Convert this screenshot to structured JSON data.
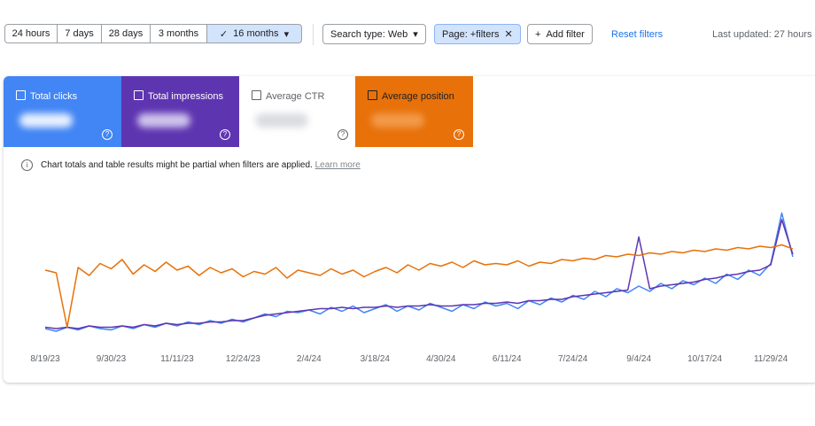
{
  "filters": {
    "ranges": [
      "24 hours",
      "7 days",
      "28 days",
      "3 months",
      "16 months"
    ],
    "search_type": "Search type: Web",
    "page_filter": "Page: +filters",
    "add_filter": "Add filter",
    "reset": "Reset filters",
    "last_updated": "Last updated: 27 hours"
  },
  "metrics": {
    "average_ctr": "Average CTR"
  },
  "notice": {
    "text": "Chart totals and table results might be partial when filters are applied.",
    "link": "Learn more"
  },
  "chart_data": {
    "type": "line",
    "categories": [
      "8/19/23",
      null,
      null,
      null,
      null,
      null,
      "9/30/23",
      null,
      null,
      null,
      null,
      null,
      "11/11/23",
      null,
      null,
      null,
      null,
      null,
      "12/24/23",
      null,
      null,
      null,
      null,
      null,
      "2/4/24",
      null,
      null,
      null,
      null,
      null,
      "3/18/24",
      null,
      null,
      null,
      null,
      null,
      "4/30/24",
      null,
      null,
      null,
      null,
      null,
      "6/11/24",
      null,
      null,
      null,
      null,
      null,
      "7/24/24",
      null,
      null,
      null,
      null,
      null,
      "9/4/24",
      null,
      null,
      null,
      null,
      null,
      "10/17/24",
      null,
      null,
      null,
      null,
      null,
      "11/29/24",
      null,
      null
    ],
    "ylim": [
      0,
      100
    ],
    "series": [
      {
        "name": "Total clicks",
        "color": "#4285f4",
        "values": [
          6,
          4,
          7,
          5,
          8,
          6,
          5,
          8,
          6,
          9,
          7,
          10,
          8,
          11,
          9,
          12,
          10,
          13,
          11,
          14,
          17,
          15,
          19,
          18,
          20,
          17,
          22,
          19,
          23,
          18,
          21,
          24,
          19,
          23,
          20,
          25,
          22,
          19,
          24,
          21,
          26,
          23,
          25,
          21,
          27,
          24,
          29,
          26,
          31,
          28,
          34,
          30,
          36,
          33,
          38,
          34,
          40,
          36,
          42,
          39,
          44,
          40,
          47,
          43,
          50,
          46,
          55,
          93,
          60
        ]
      },
      {
        "name": "Total impressions",
        "color": "#5e35b1",
        "values": [
          7,
          6,
          7,
          6,
          8,
          7,
          7,
          8,
          7,
          9,
          8,
          10,
          9,
          10,
          10,
          11,
          11,
          12,
          12,
          14,
          16,
          17,
          18,
          19,
          20,
          21,
          21,
          22,
          21,
          22,
          22,
          23,
          22,
          23,
          23,
          24,
          23,
          23,
          24,
          24,
          25,
          25,
          26,
          25,
          27,
          27,
          28,
          28,
          30,
          31,
          32,
          33,
          34,
          35,
          75,
          36,
          38,
          39,
          40,
          41,
          43,
          44,
          46,
          47,
          49,
          50,
          54,
          88,
          62
        ]
      },
      {
        "name": "Average position",
        "color": "#e8710a",
        "values": [
          50,
          48,
          7,
          52,
          46,
          55,
          51,
          58,
          47,
          54,
          49,
          56,
          50,
          53,
          46,
          52,
          48,
          51,
          45,
          49,
          47,
          52,
          44,
          50,
          48,
          46,
          51,
          47,
          50,
          45,
          49,
          52,
          48,
          54,
          50,
          55,
          53,
          56,
          52,
          57,
          54,
          55,
          54,
          57,
          53,
          56,
          55,
          58,
          57,
          59,
          58,
          61,
          60,
          62,
          61,
          63,
          62,
          64,
          63,
          65,
          64,
          66,
          65,
          67,
          66,
          68,
          67,
          69,
          66
        ]
      }
    ]
  }
}
